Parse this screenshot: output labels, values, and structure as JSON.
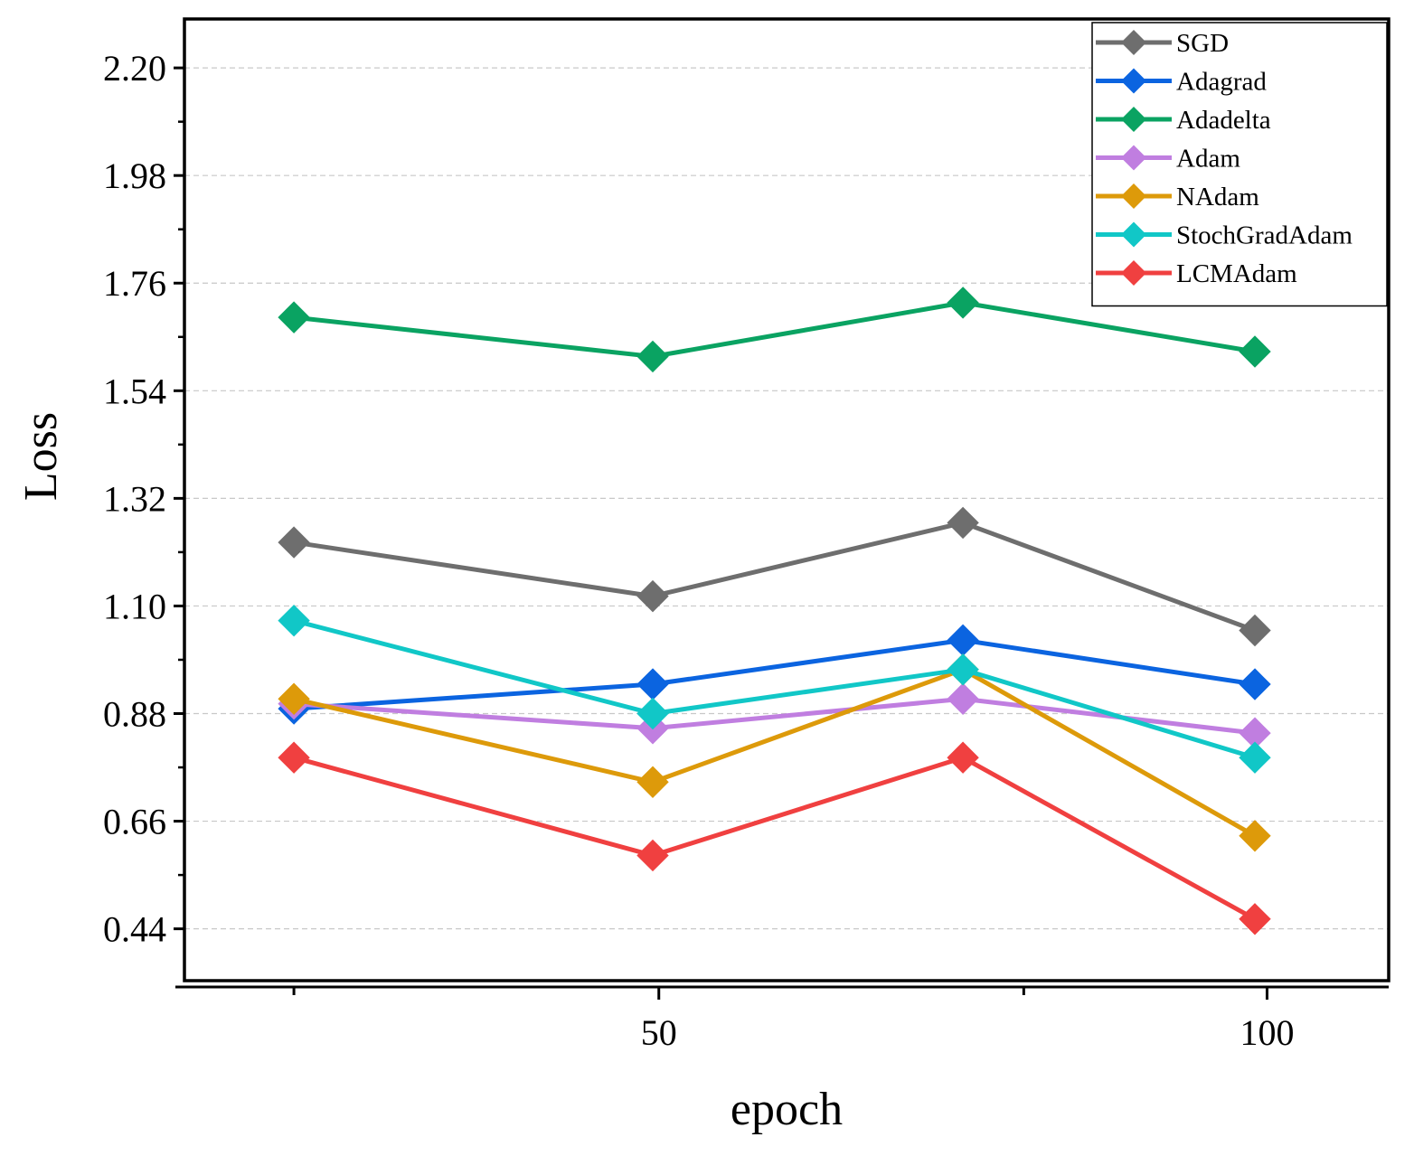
{
  "chart_data": {
    "type": "line",
    "title": "",
    "xlabel": "epoch",
    "ylabel": "Loss",
    "x": [
      20,
      49.5,
      75,
      99
    ],
    "xlim": [
      11,
      110
    ],
    "xticks": [
      20,
      50,
      80,
      100
    ],
    "xtick_labels": [
      "",
      "50",
      "",
      "100"
    ],
    "ylim": [
      0.334,
      2.3
    ],
    "yticks": [
      0.44,
      0.66,
      0.88,
      1.1,
      1.32,
      1.54,
      1.76,
      1.98,
      2.2
    ],
    "ytick_labels": [
      "0.44",
      "0.66",
      "0.88",
      "1.10",
      "1.32",
      "1.54",
      "1.76",
      "1.98",
      "2.20"
    ],
    "grid": true,
    "legend_position": "top-right",
    "series": [
      {
        "name": "SGD",
        "color": "#6e6e6e",
        "values": [
          1.23,
          1.12,
          1.27,
          1.05
        ]
      },
      {
        "name": "Adagrad",
        "color": "#0b64e0",
        "values": [
          0.89,
          0.94,
          1.03,
          0.94
        ]
      },
      {
        "name": "Adadelta",
        "color": "#0aa362",
        "values": [
          1.69,
          1.61,
          1.72,
          1.62
        ]
      },
      {
        "name": "Adam",
        "color": "#c07ee0",
        "values": [
          0.9,
          0.85,
          0.91,
          0.84
        ]
      },
      {
        "name": "NAdam",
        "color": "#dd9a0a",
        "values": [
          0.91,
          0.74,
          0.97,
          0.63
        ]
      },
      {
        "name": "StochGradAdam",
        "color": "#11c7c7",
        "values": [
          1.07,
          0.88,
          0.97,
          0.79
        ]
      },
      {
        "name": "LCMAdam",
        "color": "#f04040",
        "values": [
          0.79,
          0.59,
          0.79,
          0.46
        ]
      }
    ]
  }
}
